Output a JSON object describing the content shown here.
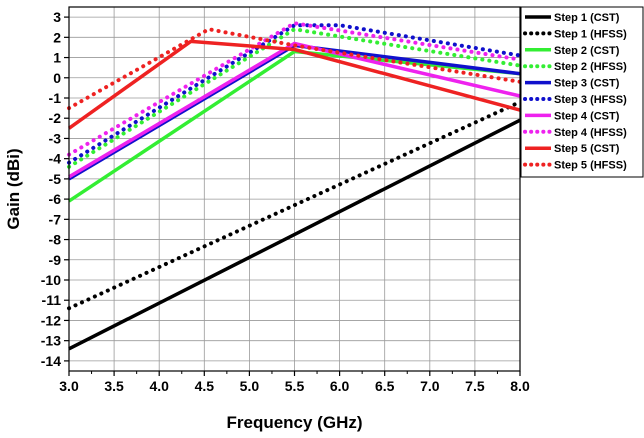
{
  "chart_data": {
    "type": "line",
    "title": "",
    "xlabel": "Frequency (GHz)",
    "ylabel": "Gain (dBi)",
    "xlim": [
      3.0,
      8.0
    ],
    "ylim": [
      -14.5,
      3.5
    ],
    "xticks": [
      3.0,
      3.5,
      4.0,
      4.5,
      5.0,
      5.5,
      6.0,
      6.5,
      7.0,
      7.5,
      8.0
    ],
    "xtick_labels": [
      "3.0",
      "3.5",
      "4.0",
      "4.5",
      "5.0",
      "5.5",
      "6.0",
      "6.5",
      "7.0",
      "7.5",
      "8.0"
    ],
    "yticks": [
      3,
      2,
      1,
      0,
      -1,
      -2,
      -3,
      -4,
      -5,
      -6,
      -7,
      -8,
      -9,
      -10,
      -11,
      -12,
      -13,
      -14
    ],
    "ytick_labels": [
      "3",
      "2",
      "1",
      "0",
      "-1",
      "-2",
      "-3",
      "-4",
      "-5",
      "-6",
      "-7",
      "-8",
      "-9",
      "-10",
      "-11",
      "-12",
      "-13",
      "-14"
    ],
    "grid": true,
    "legend_position": "right",
    "series": [
      {
        "name": "Step 1 (CST)",
        "color": "#000000",
        "dash": "solid",
        "x": [
          3.0,
          8.0
        ],
        "y": [
          -13.4,
          -2.1
        ]
      },
      {
        "name": "Step 1 (HFSS)",
        "color": "#000000",
        "dash": "dot",
        "x": [
          3.0,
          8.0
        ],
        "y": [
          -11.4,
          -1.2
        ]
      },
      {
        "name": "Step 2 (CST)",
        "color": "#33ee33",
        "dash": "solid",
        "x": [
          3.0,
          5.5,
          8.0
        ],
        "y": [
          -6.1,
          1.3,
          0.2
        ]
      },
      {
        "name": "Step 2 (HFSS)",
        "color": "#33ee33",
        "dash": "dot",
        "x": [
          3.0,
          5.5,
          8.0
        ],
        "y": [
          -4.4,
          2.4,
          0.6
        ]
      },
      {
        "name": "Step 3 (CST)",
        "color": "#1010cc",
        "dash": "solid",
        "x": [
          3.0,
          5.5,
          8.0
        ],
        "y": [
          -5.0,
          1.6,
          0.2
        ]
      },
      {
        "name": "Step 3 (HFSS)",
        "color": "#1010cc",
        "dash": "dot",
        "x": [
          3.0,
          5.5,
          6.0,
          8.0
        ],
        "y": [
          -4.2,
          2.6,
          2.6,
          1.1
        ]
      },
      {
        "name": "Step 4 (CST)",
        "color": "#ee22ee",
        "dash": "solid",
        "x": [
          3.0,
          5.5,
          8.0
        ],
        "y": [
          -4.9,
          1.7,
          -0.9
        ]
      },
      {
        "name": "Step 4 (HFSS)",
        "color": "#ee22ee",
        "dash": "dot",
        "x": [
          3.0,
          5.5,
          8.0
        ],
        "y": [
          -3.8,
          2.7,
          0.9
        ]
      },
      {
        "name": "Step 5 (CST)",
        "color": "#ee2222",
        "dash": "solid",
        "x": [
          3.0,
          4.35,
          5.5,
          8.0
        ],
        "y": [
          -2.5,
          1.8,
          1.4,
          -1.6
        ]
      },
      {
        "name": "Step 5 (HFSS)",
        "color": "#ee2222",
        "dash": "dot",
        "x": [
          3.0,
          4.55,
          5.5,
          8.0
        ],
        "y": [
          -1.5,
          2.4,
          1.6,
          -0.2
        ]
      }
    ]
  }
}
